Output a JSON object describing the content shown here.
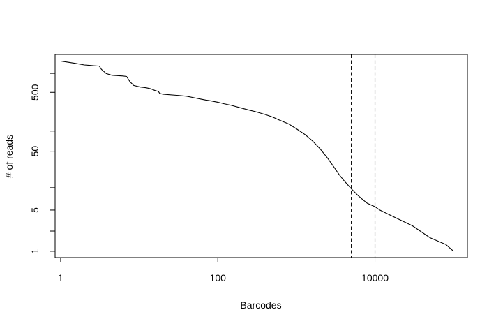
{
  "chart_data": {
    "type": "line",
    "title": "",
    "xlabel": "Barcodes",
    "ylabel": "# of reads",
    "x_scale": "log10",
    "y_scale": "log10",
    "xlim": [
      0.85,
      150000
    ],
    "ylim": [
      0.78,
      2200
    ],
    "x_ticks": [
      {
        "value": 1,
        "label": "1"
      },
      {
        "value": 100,
        "label": "100"
      },
      {
        "value": 10000,
        "label": "10000"
      }
    ],
    "y_ticks": [
      {
        "value": 1,
        "label": "1"
      },
      {
        "value": 2.2,
        "label": ""
      },
      {
        "value": 5,
        "label": "5"
      },
      {
        "value": 12,
        "label": ""
      },
      {
        "value": 50,
        "label": "50"
      },
      {
        "value": 110,
        "label": ""
      },
      {
        "value": 500,
        "label": "500"
      },
      {
        "value": 1050,
        "label": ""
      }
    ],
    "grid": false,
    "legend": "none",
    "reference_lines": [
      {
        "x": 5000,
        "style": "dashed"
      },
      {
        "x": 10000,
        "style": "dashed"
      }
    ],
    "series": [
      {
        "values": [
          [
            1,
            1700
          ],
          [
            1.5,
            1560
          ],
          [
            2,
            1460
          ],
          [
            2.6,
            1420
          ],
          [
            3.1,
            1400
          ],
          [
            3.3,
            1230
          ],
          [
            3.8,
            1040
          ],
          [
            4.5,
            975
          ],
          [
            6.2,
            950
          ],
          [
            6.9,
            930
          ],
          [
            7.6,
            760
          ],
          [
            8.5,
            655
          ],
          [
            10.3,
            615
          ],
          [
            12,
            600
          ],
          [
            12.5,
            595
          ],
          [
            14,
            575
          ],
          [
            16,
            535
          ],
          [
            17.5,
            520
          ],
          [
            18.2,
            480
          ],
          [
            20,
            465
          ],
          [
            30,
            445
          ],
          [
            40,
            430
          ],
          [
            50,
            405
          ],
          [
            60,
            385
          ],
          [
            70,
            370
          ],
          [
            80,
            360
          ],
          [
            100,
            340
          ],
          [
            120,
            320
          ],
          [
            150,
            300
          ],
          [
            200,
            270
          ],
          [
            250,
            250
          ],
          [
            300,
            235
          ],
          [
            400,
            210
          ],
          [
            500,
            190
          ],
          [
            600,
            170
          ],
          [
            800,
            145
          ],
          [
            1000,
            120
          ],
          [
            1300,
            95
          ],
          [
            1600,
            75
          ],
          [
            2000,
            55
          ],
          [
            2500,
            38
          ],
          [
            3000,
            27
          ],
          [
            3500,
            20
          ],
          [
            4000,
            16
          ],
          [
            4600,
            13
          ],
          [
            5000,
            11.5
          ],
          [
            6000,
            9
          ],
          [
            7000,
            7.5
          ],
          [
            8000,
            6.5
          ],
          [
            10000,
            5.7
          ],
          [
            11500,
            5
          ],
          [
            15000,
            4.2
          ],
          [
            20000,
            3.5
          ],
          [
            30000,
            2.7
          ],
          [
            50000,
            1.7
          ],
          [
            80000,
            1.3
          ],
          [
            100000,
            1
          ]
        ]
      }
    ]
  }
}
